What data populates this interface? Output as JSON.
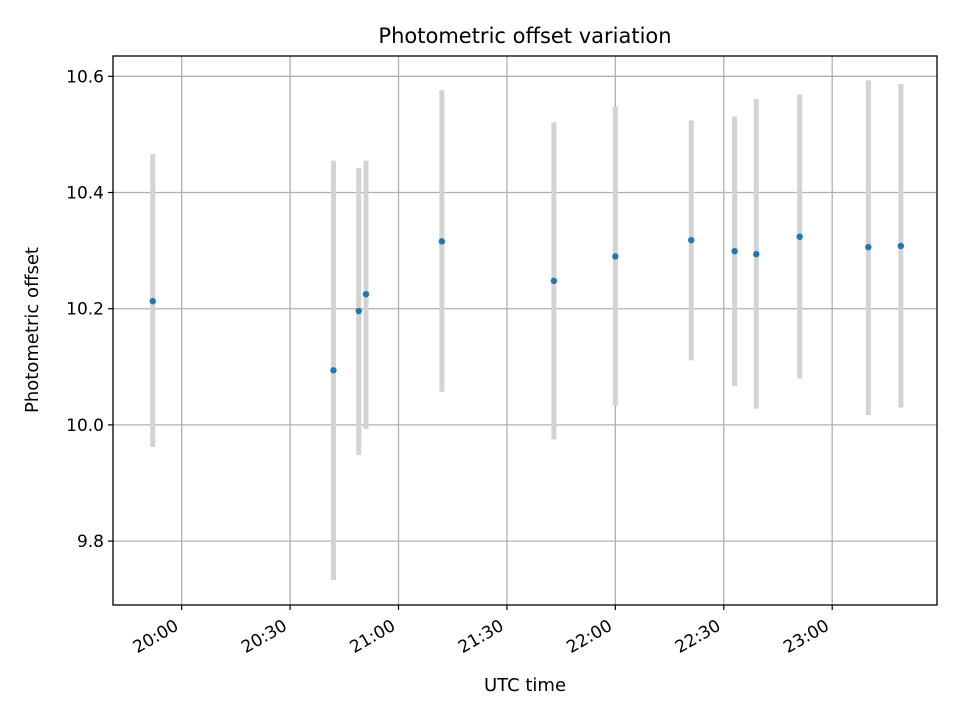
{
  "chart_data": {
    "type": "scatter",
    "title": "Photometric offset variation",
    "xlabel": "UTC time",
    "ylabel": "Photometric offset",
    "x_axis_type": "time",
    "xlim": [
      "19:41",
      "23:29"
    ],
    "ylim": [
      9.69,
      10.635
    ],
    "x_ticks": [
      "20:00",
      "20:30",
      "21:00",
      "21:30",
      "22:00",
      "22:30",
      "23:00"
    ],
    "y_ticks": [
      "9.8",
      "10.0",
      "10.2",
      "10.4",
      "10.6"
    ],
    "grid": true,
    "legend": "none",
    "marker_color": "#1f77b4",
    "errorbar_color": "#d3d3d3",
    "points": [
      {
        "x": "19:52",
        "y": 10.213,
        "lo": 9.962,
        "hi": 10.466
      },
      {
        "x": "20:42",
        "y": 10.094,
        "lo": 9.733,
        "hi": 10.455
      },
      {
        "x": "20:49",
        "y": 10.196,
        "lo": 9.948,
        "hi": 10.442
      },
      {
        "x": "20:51",
        "y": 10.225,
        "lo": 9.993,
        "hi": 10.455
      },
      {
        "x": "21:12",
        "y": 10.316,
        "lo": 10.057,
        "hi": 10.576
      },
      {
        "x": "21:43",
        "y": 10.248,
        "lo": 9.975,
        "hi": 10.521
      },
      {
        "x": "22:00",
        "y": 10.29,
        "lo": 10.033,
        "hi": 10.548
      },
      {
        "x": "22:21",
        "y": 10.318,
        "lo": 10.111,
        "hi": 10.524
      },
      {
        "x": "22:33",
        "y": 10.299,
        "lo": 10.067,
        "hi": 10.531
      },
      {
        "x": "22:39",
        "y": 10.294,
        "lo": 10.028,
        "hi": 10.561
      },
      {
        "x": "22:51",
        "y": 10.324,
        "lo": 10.08,
        "hi": 10.569
      },
      {
        "x": "23:10",
        "y": 10.306,
        "lo": 10.017,
        "hi": 10.593
      },
      {
        "x": "23:19",
        "y": 10.308,
        "lo": 10.03,
        "hi": 10.587
      }
    ]
  }
}
